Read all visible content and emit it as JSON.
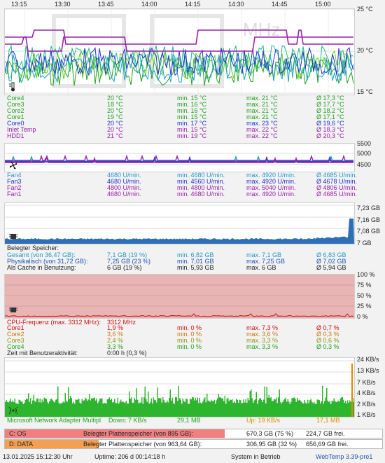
{
  "time_axis": [
    "13:15",
    "13:30",
    "13:45",
    "14:00",
    "14:15",
    "14:30",
    "14:45",
    "15:00"
  ],
  "colors": {
    "temp": "#22a022",
    "fan": "#2233cc",
    "mem": "#2255aa",
    "cpu": "#cc1111",
    "net_down": "#22a022",
    "net_up": "#e08800"
  },
  "temperature": {
    "y_ticks": [
      "25 °C",
      "20 °C",
      "15 °C"
    ],
    "watermark": "MHz",
    "icon": "thermometer-icon",
    "rows": [
      {
        "name": "Core4",
        "cur": "20 °C",
        "min": "min. 15 °C",
        "max": "max. 21 °C",
        "avg": "Ø 17,3 °C",
        "color": "#22a022"
      },
      {
        "name": "Core3",
        "cur": "18 °C",
        "min": "min. 16 °C",
        "max": "max. 21 °C",
        "avg": "Ø 17,7 °C",
        "color": "#22a022"
      },
      {
        "name": "Core2",
        "cur": "20 °C",
        "min": "min. 16 °C",
        "max": "max. 21 °C",
        "avg": "Ø 18,2 °C",
        "color": "#22a022"
      },
      {
        "name": "Core1",
        "cur": "19 °C",
        "min": "min. 15 °C",
        "max": "max. 21 °C",
        "avg": "Ø 17,1 °C",
        "color": "#22a022"
      },
      {
        "name": "Core0",
        "cur": "20 °C",
        "min": "min. 17 °C",
        "max": "max. 23 °C",
        "avg": "Ø 19,6 °C",
        "color": "#2233cc"
      },
      {
        "name": "Inlet Temp",
        "cur": "20 °C",
        "min": "min. 15 °C",
        "max": "max. 22 °C",
        "avg": "Ø 18,3 °C",
        "color": "#9922aa"
      },
      {
        "name": "HDD1",
        "cur": "21 °C",
        "min": "min. 19 °C",
        "max": "max. 22 °C",
        "avg": "Ø 20,3 °C",
        "color": "#9922aa"
      }
    ]
  },
  "fans": {
    "y_ticks": [
      "5500",
      "5000",
      "4500"
    ],
    "icon": "fan-icon",
    "rows": [
      {
        "name": "Fan4",
        "cur": "4680 U/min.",
        "min": "min. 4680 U/min.",
        "max": "max. 4920 U/min.",
        "avg": "Ø 4685 U/min.",
        "color": "#2299cc"
      },
      {
        "name": "Fan3",
        "cur": "4680 U/min.",
        "min": "min. 4560 U/min.",
        "max": "max. 4920 U/min.",
        "avg": "Ø 4678 U/min.",
        "color": "#2233cc"
      },
      {
        "name": "Fan2",
        "cur": "4800 U/min.",
        "min": "min. 4800 U/min.",
        "max": "max. 5040 U/min.",
        "avg": "Ø 4806 U/min.",
        "color": "#9922aa"
      },
      {
        "name": "Fan1",
        "cur": "4680 U/min.",
        "min": "min. 4680 U/min.",
        "max": "max. 4920 U/min.",
        "avg": "Ø 4685 U/min.",
        "color": "#9922aa"
      }
    ]
  },
  "memory": {
    "y_ticks": [
      "7,23 GB",
      "7,16 GB",
      "7,08 GB",
      "7 GB"
    ],
    "icon": "memory-chip-icon",
    "header": "Belegter Speicher:",
    "rows": [
      {
        "name": "Gesamt (von 36,47 GB):",
        "cur": "7,1 GB (19 %)",
        "min": "min. 6,82 GB",
        "max": "max. 7,1 GB",
        "avg": "Ø 6,83 GB",
        "color": "#2299cc"
      },
      {
        "name": "Physikalisch (von 31,72 GB):",
        "cur": "7,25 GB (23 %)",
        "min": "min. 7,01 GB",
        "max": "max. 7,25 GB",
        "avg": "Ø 7,02 GB",
        "color": "#2255aa"
      },
      {
        "name": "Als Cache in Benutzung:",
        "cur": "6 GB (19 %)",
        "min": "min. 5,93 GB",
        "max": "max. 6 GB",
        "avg": "Ø 5,94 GB",
        "color": "#222222"
      }
    ]
  },
  "cpu": {
    "y_ticks": [
      "100 %",
      "75 %",
      "50 %",
      "25 %",
      "0 %"
    ],
    "icon": "cpu-chip-icon",
    "freq_label": "CPU-Frequenz (max. 3312 MHz):",
    "freq_value": "3312 MHz",
    "rows": [
      {
        "name": "Core1",
        "cur": "1,9 %",
        "min": "min. 0 %",
        "max": "max. 7,3 %",
        "avg": "Ø 0,7 %",
        "color": "#cc1111"
      },
      {
        "name": "Core2",
        "cur": "3,6 %",
        "min": "min. 0 %",
        "max": "max. 3,6 %",
        "avg": "Ø 0,3 %",
        "color": "#cc7711"
      },
      {
        "name": "Core3",
        "cur": "2,4 %",
        "min": "min. 0 %",
        "max": "max. 3,3 %",
        "avg": "Ø 0,6 %",
        "color": "#889911"
      },
      {
        "name": "Core4",
        "cur": "3,3 %",
        "min": "min. 0 %",
        "max": "max. 3,3 %",
        "avg": "Ø 0,3 %",
        "color": "#22a022"
      }
    ],
    "activity_label": "Zeit mit Benutzeraktivität:",
    "activity_value": "0:00 h (0,3 %)"
  },
  "network": {
    "y_ticks": [
      "24 KB/s",
      "13 KB/s",
      "7 KB/s",
      "4 KB/s",
      "2 KB/s",
      "1 KB/s"
    ],
    "icon": "network-antenna-icon",
    "adapter": "Microsoft Network Adapter Multipl",
    "down_label": "Down: 7 KB/s",
    "down_total": "29,1 MB",
    "up_label": "Up: 19 KB/s",
    "up_total": "17,1 MB"
  },
  "disks": [
    {
      "label": "C: OS",
      "desc": "Belegter Plattenspeicher (von 895 GB):",
      "used": "670,3 GB (75 %)",
      "free": "224,7 GB frei.",
      "percent": 75,
      "color": "#f08080"
    },
    {
      "label": "D: DATA",
      "desc": "Belegter Plattenspeicher (von 963,64 GB):",
      "used": "306,95 GB (32 %)",
      "free": "656,69 GB frei.",
      "percent": 32,
      "color": "#f5a050"
    }
  ],
  "status": {
    "datetime": "13.01.2025 15:12:30 Uhr",
    "uptime": "Uptime: 206 d 00:14:18 h",
    "state": "System in Betrieb",
    "version": "WebTemp 3.39-pre1"
  }
}
